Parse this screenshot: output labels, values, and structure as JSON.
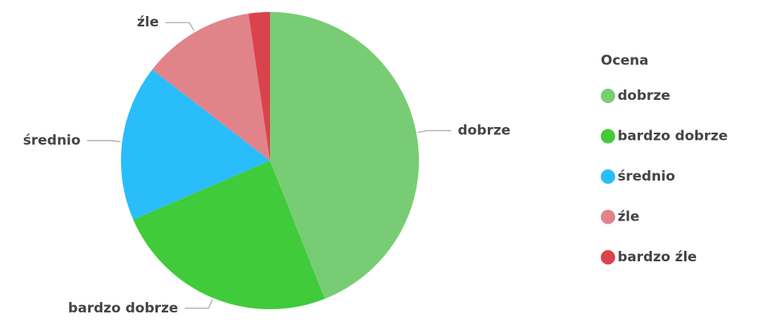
{
  "chart_data": {
    "type": "pie",
    "legend_title": "Ocena",
    "categories": [
      "dobrze",
      "bardzo dobrze",
      "średnio",
      "źle",
      "bardzo źle"
    ],
    "values": [
      44,
      24.5,
      17,
      12.2,
      2.3
    ],
    "colors": [
      "#78cd74",
      "#3fcb3a",
      "#29bdfb",
      "#e0848a",
      "#d9434e"
    ],
    "legend_position": "right"
  }
}
